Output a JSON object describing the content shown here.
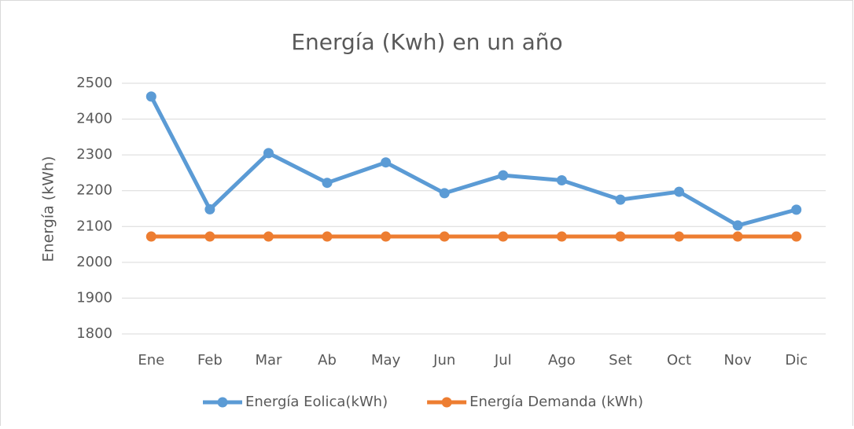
{
  "chart_data": {
    "type": "line",
    "title": "Energía (Kwh) en un año",
    "ylabel": "Energía (kWh)",
    "categories": [
      "Ene",
      "Feb",
      "Mar",
      "Ab",
      "May",
      "Jun",
      "Jul",
      "Ago",
      "Set",
      "Oct",
      "Nov",
      "Dic"
    ],
    "series": [
      {
        "name": "Energía Eolica(kWh)",
        "color": "#5b9bd5",
        "values": [
          2463,
          2148,
          2305,
          2222,
          2279,
          2193,
          2243,
          2229,
          2175,
          2197,
          2103,
          2147
        ]
      },
      {
        "name": "Energía Demanda (kWh)",
        "color": "#ed7d31",
        "values": [
          2072,
          2072,
          2072,
          2072,
          2072,
          2072,
          2072,
          2072,
          2072,
          2072,
          2072,
          2072
        ]
      }
    ],
    "ylim": [
      1800,
      2500
    ],
    "yticks": [
      1800,
      1900,
      2000,
      2100,
      2200,
      2300,
      2400,
      2500
    ],
    "grid": true,
    "legend": "bottom"
  }
}
